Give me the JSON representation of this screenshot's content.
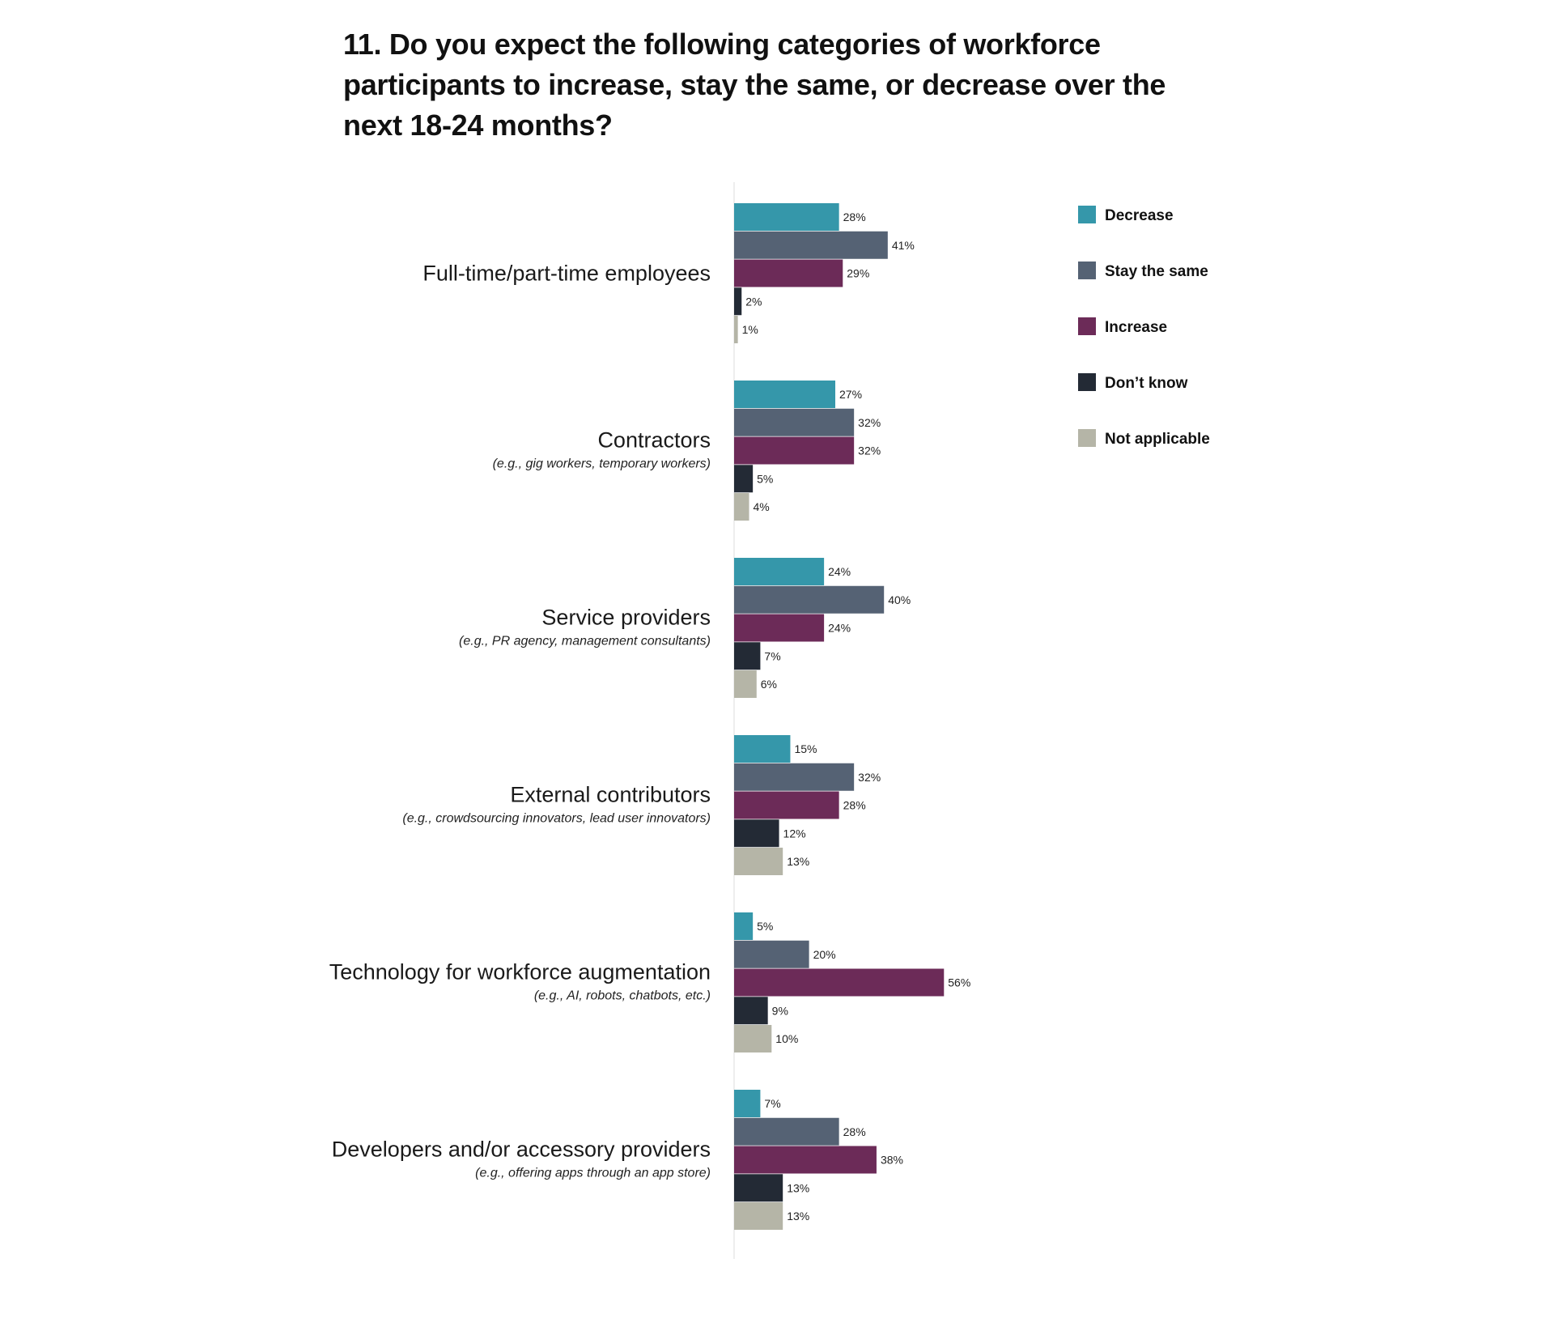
{
  "title": "11. Do you expect the following categories of workforce participants to increase, stay the same, or decrease over the next 18-24 months?",
  "chart_data": {
    "type": "bar",
    "orientation": "horizontal",
    "title": "11. Do you expect the following categories of workforce participants to increase, stay the same, or decrease over the next 18-24 months?",
    "categories": [
      {
        "label": "Full-time/part-time employees",
        "sublabel": ""
      },
      {
        "label": "Contractors",
        "sublabel": "(e.g., gig workers, temporary workers)"
      },
      {
        "label": "Service providers",
        "sublabel": "(e.g., PR agency, management consultants)"
      },
      {
        "label": "External contributors",
        "sublabel": "(e.g., crowdsourcing innovators, lead user innovators)"
      },
      {
        "label": "Technology for workforce augmentation",
        "sublabel": "(e.g., AI, robots, chatbots, etc.)"
      },
      {
        "label": "Developers and/or accessory providers",
        "sublabel": "(e.g., offering apps through an app store)"
      }
    ],
    "series": [
      {
        "name": "Decrease",
        "color": "#3597aa",
        "values": [
          28,
          27,
          24,
          15,
          5,
          7
        ]
      },
      {
        "name": "Stay the same",
        "color": "#556274",
        "values": [
          41,
          32,
          40,
          32,
          20,
          28
        ]
      },
      {
        "name": "Increase",
        "color": "#6c2b58",
        "values": [
          29,
          32,
          24,
          28,
          56,
          38
        ]
      },
      {
        "name": "Don’t know",
        "color": "#232a35",
        "values": [
          2,
          5,
          7,
          12,
          9,
          13
        ]
      },
      {
        "name": "Not applicable",
        "color": "#b5b5a7",
        "values": [
          1,
          4,
          6,
          13,
          10,
          13
        ]
      }
    ],
    "value_suffix": "%",
    "xlim": [
      0,
      100
    ],
    "grid": false,
    "legend_position": "top-right"
  }
}
